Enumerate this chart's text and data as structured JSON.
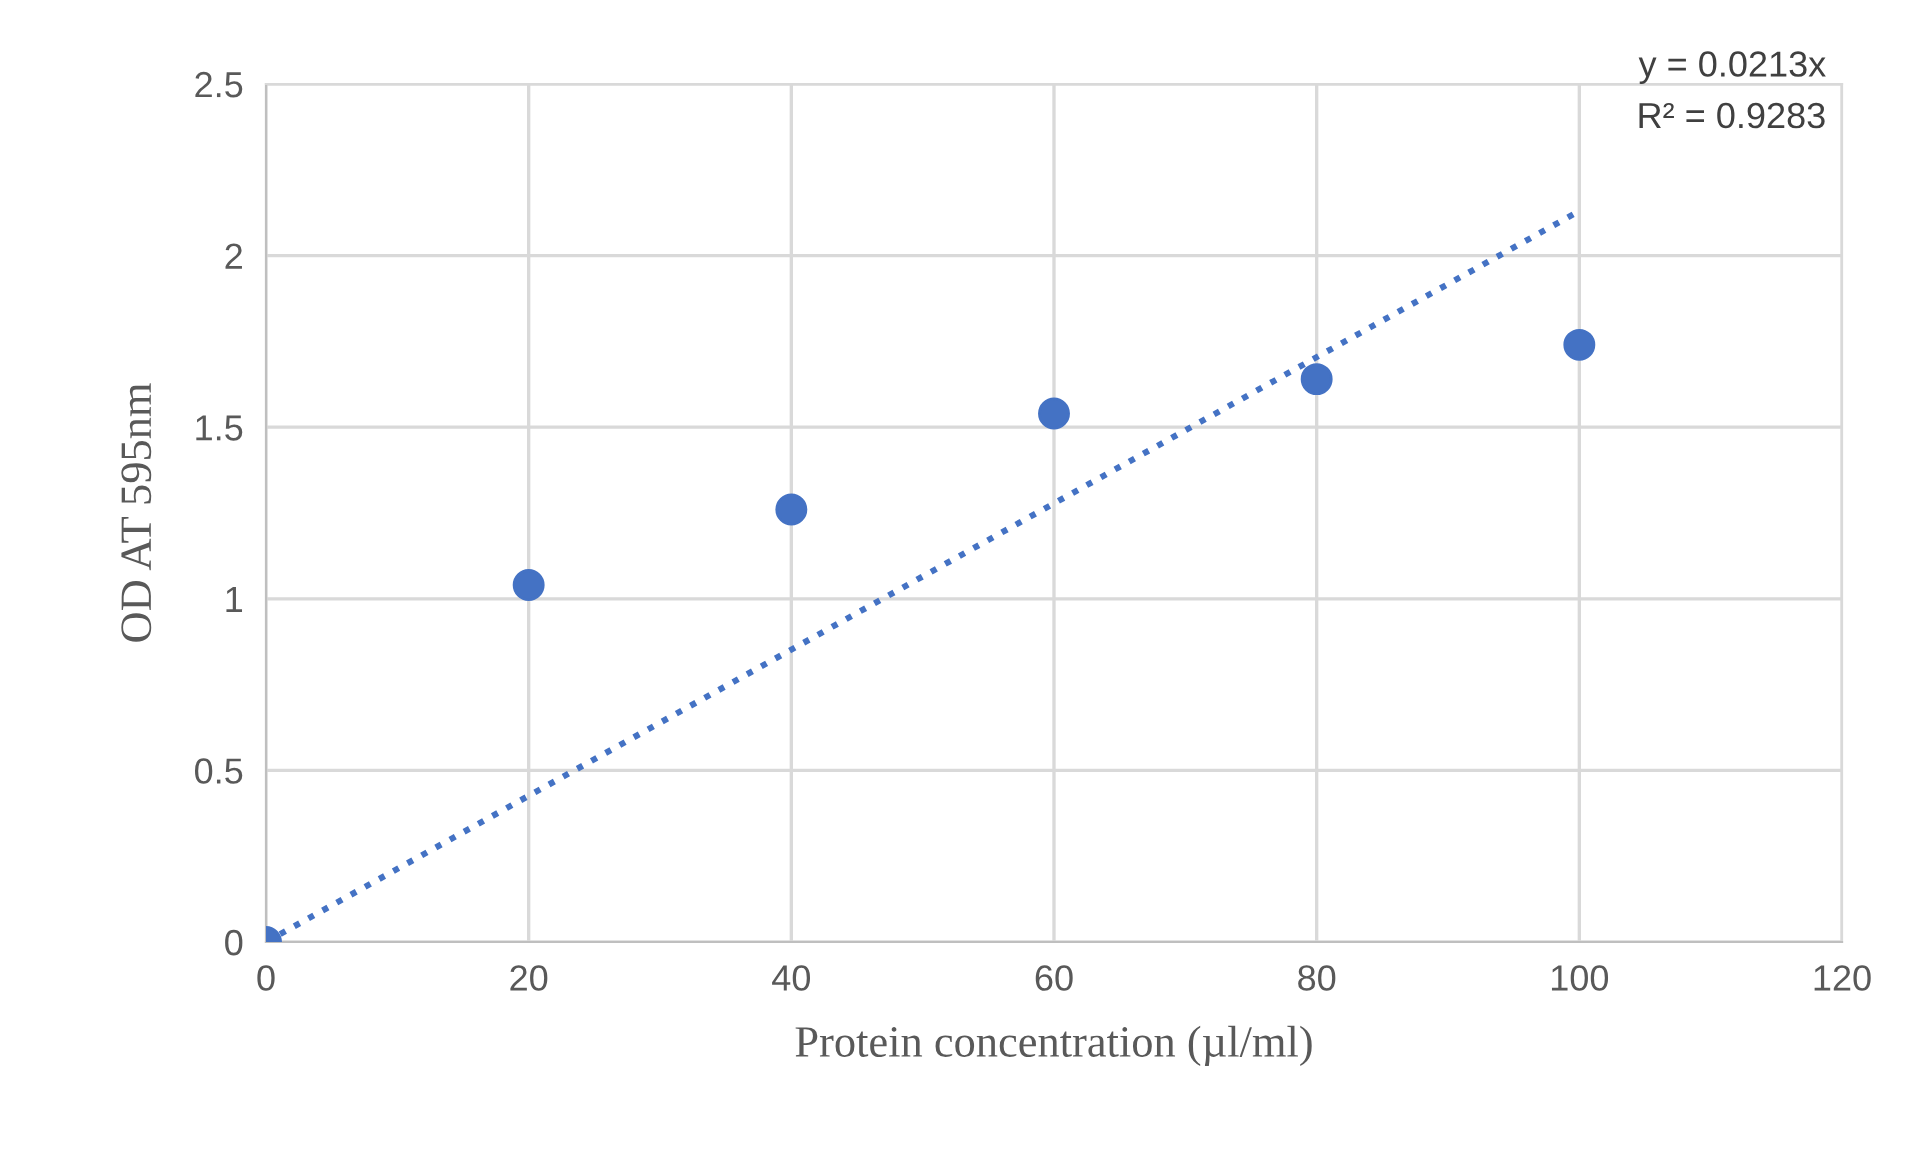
{
  "chart_data": {
    "type": "scatter",
    "xlabel": "Protein concentration (µl/ml)",
    "ylabel": "OD AT 595nm",
    "annotations": [
      "y = 0.0213x",
      "R² = 0.9283"
    ],
    "series": [
      {
        "color": "#4472c4",
        "marker": "circle",
        "x": [
          0,
          20,
          40,
          60,
          80,
          100
        ],
        "values": [
          0,
          1.04,
          1.26,
          1.54,
          1.64,
          1.74
        ]
      },
      {
        "type": "line",
        "color": "#4472c4",
        "line_style": "dotted",
        "marker": "none",
        "x": [
          0,
          100
        ],
        "values": [
          0,
          2.13
        ]
      }
    ],
    "xlim": [
      0,
      120
    ],
    "xticks": [
      0,
      20,
      40,
      60,
      80,
      100,
      120
    ],
    "ylim": [
      0,
      2.5
    ],
    "yticks": [
      0,
      0.5,
      1,
      1.5,
      2,
      2.5
    ],
    "grid": true,
    "legend": false
  }
}
